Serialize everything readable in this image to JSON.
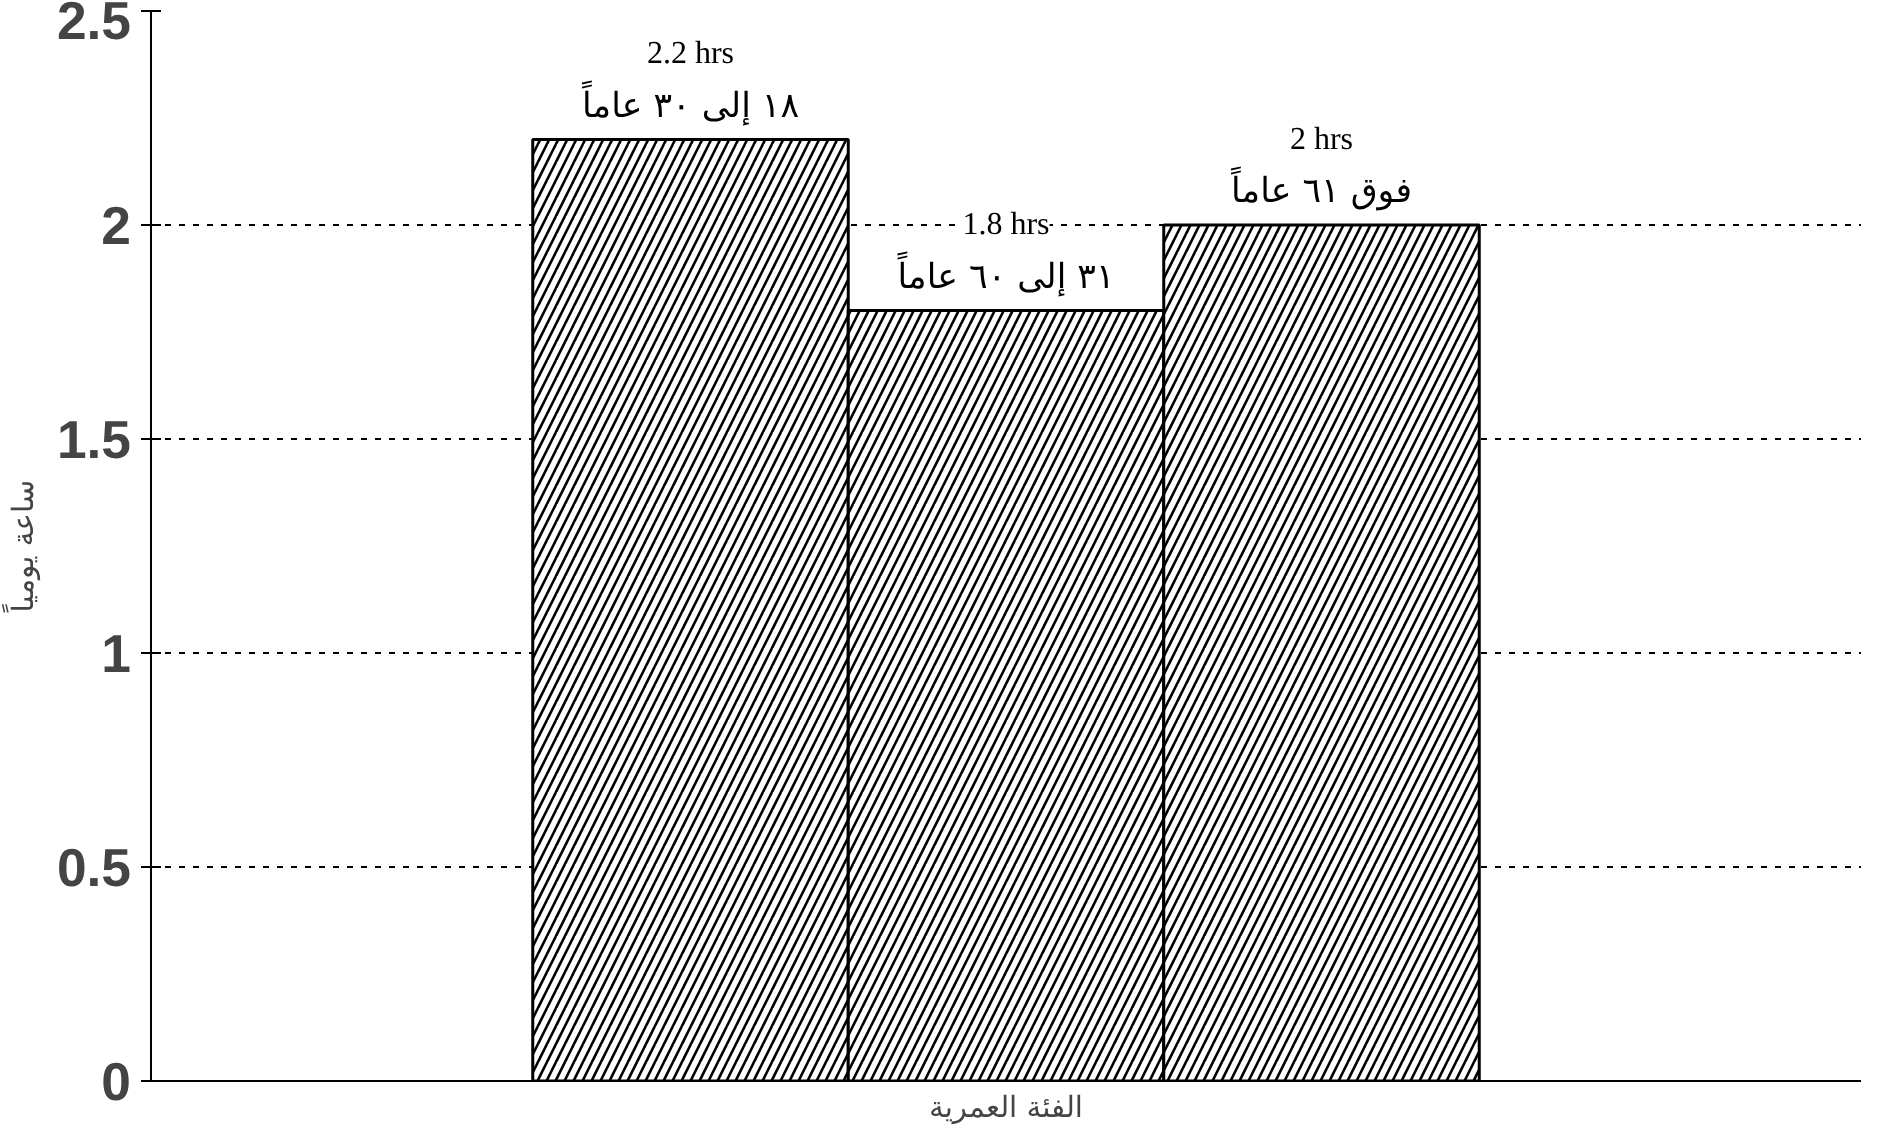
{
  "chart_data": {
    "type": "bar",
    "xlabel": "الفئة العمرية",
    "ylabel": "ساعة يومياً",
    "categories": [
      "١٨ إلى ٣٠ عاماً",
      "٣١ إلى ٦٠ عاماً",
      "فوق ٦١ عاماً"
    ],
    "values": [
      2.2,
      1.8,
      2.0
    ],
    "value_labels": [
      "2.2 hrs",
      "1.8 hrs",
      "2 hrs"
    ],
    "color": "#000000",
    "ylim": [
      0,
      2.5
    ],
    "yticks": [
      0,
      0.5,
      1,
      1.5,
      2,
      2.5
    ],
    "grid": "y"
  }
}
